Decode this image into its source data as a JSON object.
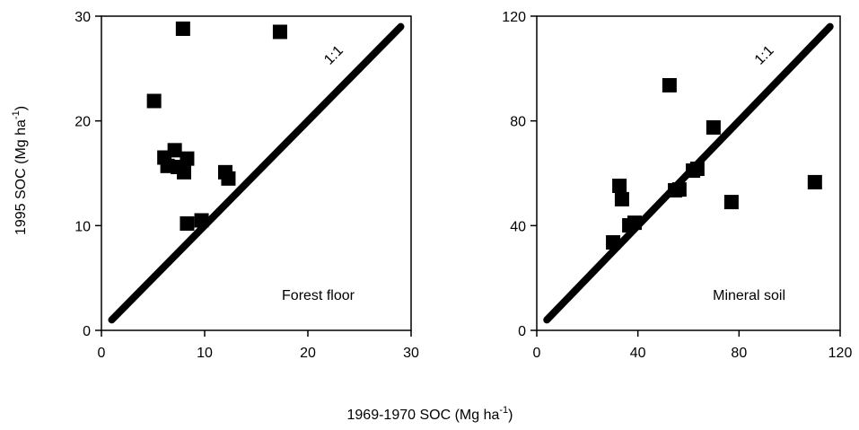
{
  "axis_labels": {
    "x": "1969-1970 SOC (Mg ha",
    "x_sup": "-1",
    "x_end": ")",
    "y": "1995 SOC (Mg ha",
    "y_sup": "-1",
    "y_end": ")"
  },
  "chart_data": [
    {
      "type": "scatter",
      "annotation": "Forest floor",
      "color": "#000000",
      "xlim": [
        0,
        30
      ],
      "ylim": [
        0,
        30
      ],
      "xticks": [
        0,
        10,
        20,
        30
      ],
      "yticks": [
        0,
        10,
        20,
        30
      ],
      "diagonal": {
        "label": "1:1",
        "from": 1,
        "to": 29
      },
      "series": [
        {
          "x": [
            5.1,
            7.9,
            17.3,
            7.1,
            6.1,
            8.3,
            6.4,
            7.4,
            8.0,
            12.0,
            12.3,
            8.3,
            9.7
          ],
          "values": [
            21.9,
            28.8,
            28.5,
            17.2,
            16.5,
            16.4,
            15.7,
            15.6,
            15.1,
            15.1,
            14.5,
            10.2,
            10.5
          ]
        }
      ]
    },
    {
      "type": "scatter",
      "annotation": "Mineral soil",
      "color": "#000000",
      "xlim": [
        0,
        120
      ],
      "ylim": [
        0,
        120
      ],
      "xticks": [
        0,
        40,
        80,
        120
      ],
      "yticks": [
        0,
        40,
        80,
        120
      ],
      "diagonal": {
        "label": "1:1",
        "from": 4,
        "to": 116
      },
      "series": [
        {
          "x": [
            52.5,
            32.7,
            33.7,
            30.2,
            36.6,
            38.7,
            54.7,
            56.4,
            61.8,
            63.5,
            69.9,
            77.0,
            110.0
          ],
          "values": [
            93.6,
            55.2,
            50.1,
            33.6,
            40.1,
            41.1,
            53.5,
            53.8,
            61.0,
            61.7,
            77.5,
            49.0,
            56.6
          ]
        }
      ]
    }
  ]
}
